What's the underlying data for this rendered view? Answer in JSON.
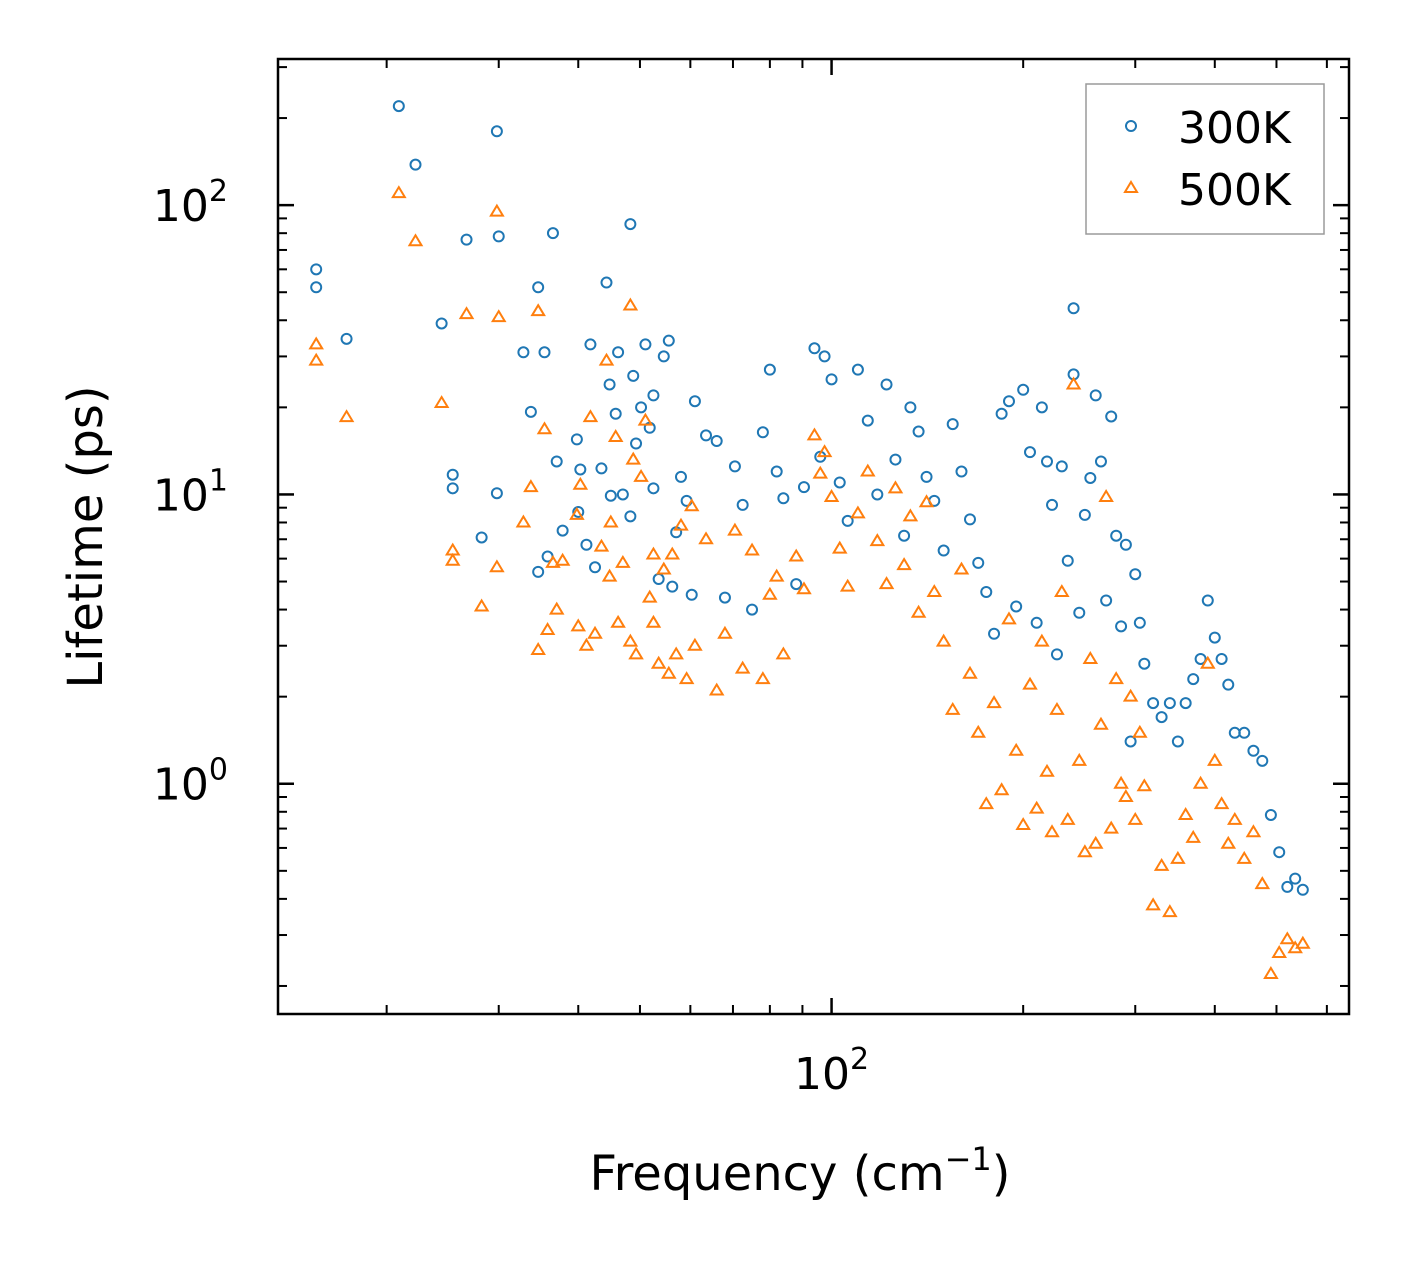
{
  "chart_data": {
    "type": "scatter",
    "title": "",
    "xlabel": "Frequency (cm",
    "xlabel_superscript": "−1",
    "xlabel_suffix": ")",
    "ylabel": "Lifetime (ps)",
    "xscale": "log",
    "yscale": "log",
    "xlim": [
      13.5,
      650
    ],
    "ylim": [
      0.16,
      320
    ],
    "xticks": [
      {
        "value": 100,
        "base": "10",
        "exp": "2"
      }
    ],
    "yticks": [
      {
        "value": 1,
        "base": "10",
        "exp": "0"
      },
      {
        "value": 10,
        "base": "10",
        "exp": "1"
      },
      {
        "value": 100,
        "base": "10",
        "exp": "2"
      }
    ],
    "grid": false,
    "legend_position": "top-right",
    "series": [
      {
        "name": "300K",
        "marker": "circle",
        "color": "#1f77b4",
        "points": [
          [
            15.5,
            60
          ],
          [
            15.5,
            52
          ],
          [
            17.3,
            34.5
          ],
          [
            20.9,
            220
          ],
          [
            22.2,
            138
          ],
          [
            24.4,
            39
          ],
          [
            25.4,
            10.5
          ],
          [
            25.4,
            11.7
          ],
          [
            26.7,
            76
          ],
          [
            28.2,
            7.1
          ],
          [
            29.8,
            180
          ],
          [
            29.8,
            10.1
          ],
          [
            30.0,
            78
          ],
          [
            32.8,
            31
          ],
          [
            33.7,
            19.3
          ],
          [
            34.6,
            52
          ],
          [
            34.6,
            5.4
          ],
          [
            35.4,
            31
          ],
          [
            35.8,
            6.1
          ],
          [
            36.5,
            80
          ],
          [
            37.0,
            13
          ],
          [
            37.8,
            7.5
          ],
          [
            39.8,
            15.5
          ],
          [
            40.0,
            8.7
          ],
          [
            40.3,
            12.2
          ],
          [
            41.2,
            6.7
          ],
          [
            41.8,
            33
          ],
          [
            42.5,
            5.6
          ],
          [
            43.5,
            12.3
          ],
          [
            44.3,
            54
          ],
          [
            44.8,
            24
          ],
          [
            45.0,
            9.9
          ],
          [
            45.8,
            19
          ],
          [
            46.2,
            31
          ],
          [
            47.0,
            10
          ],
          [
            48.3,
            86
          ],
          [
            48.3,
            8.4
          ],
          [
            48.8,
            25.7
          ],
          [
            49.3,
            15
          ],
          [
            50.2,
            20
          ],
          [
            51.0,
            33
          ],
          [
            51.8,
            17
          ],
          [
            52.5,
            10.5
          ],
          [
            52.5,
            22
          ],
          [
            53.5,
            5.1
          ],
          [
            54.5,
            30
          ],
          [
            55.5,
            34
          ],
          [
            56.2,
            4.8
          ],
          [
            57.0,
            7.4
          ],
          [
            58.0,
            11.5
          ],
          [
            59.2,
            9.5
          ],
          [
            60.3,
            4.5
          ],
          [
            61.0,
            21
          ],
          [
            63.5,
            16
          ],
          [
            66.0,
            15.3
          ],
          [
            68.0,
            4.4
          ],
          [
            70.5,
            12.5
          ],
          [
            72.5,
            9.2
          ],
          [
            75.0,
            4.0
          ],
          [
            78.0,
            16.4
          ],
          [
            80.0,
            27
          ],
          [
            82.0,
            12
          ],
          [
            84.0,
            9.7
          ],
          [
            88.0,
            4.9
          ],
          [
            90.5,
            10.6
          ],
          [
            94.0,
            32
          ],
          [
            96.0,
            13.5
          ],
          [
            97.5,
            30
          ],
          [
            100.0,
            25
          ],
          [
            103.0,
            11
          ],
          [
            106.0,
            8.1
          ],
          [
            110.0,
            27
          ],
          [
            114.0,
            18
          ],
          [
            118.0,
            10
          ],
          [
            122.0,
            24
          ],
          [
            126.0,
            13.2
          ],
          [
            130.0,
            7.2
          ],
          [
            133.0,
            20
          ],
          [
            137.0,
            16.5
          ],
          [
            141.0,
            11.5
          ],
          [
            145.0,
            9.5
          ],
          [
            150.0,
            6.4
          ],
          [
            155.0,
            17.5
          ],
          [
            160.0,
            12
          ],
          [
            165.0,
            8.2
          ],
          [
            170.0,
            5.8
          ],
          [
            175.0,
            4.6
          ],
          [
            180.0,
            3.3
          ],
          [
            185.0,
            19
          ],
          [
            190.0,
            21
          ],
          [
            195.0,
            4.1
          ],
          [
            200.0,
            23
          ],
          [
            205.0,
            14
          ],
          [
            210.0,
            3.6
          ],
          [
            214.0,
            20
          ],
          [
            218.0,
            13
          ],
          [
            222.0,
            9.2
          ],
          [
            226.0,
            2.8
          ],
          [
            230.0,
            12.5
          ],
          [
            235.0,
            5.9
          ],
          [
            240.0,
            44
          ],
          [
            240.0,
            26
          ],
          [
            245.0,
            3.9
          ],
          [
            250.0,
            8.5
          ],
          [
            255.0,
            11.4
          ],
          [
            260.0,
            22
          ],
          [
            265.0,
            13
          ],
          [
            270.0,
            4.3
          ],
          [
            275.0,
            18.6
          ],
          [
            280.0,
            7.2
          ],
          [
            285.0,
            3.5
          ],
          [
            290.0,
            6.7
          ],
          [
            295.0,
            1.4
          ],
          [
            300.0,
            5.3
          ],
          [
            305.0,
            3.6
          ],
          [
            310.0,
            2.6
          ],
          [
            320.0,
            1.9
          ],
          [
            330.0,
            1.7
          ],
          [
            340.0,
            1.9
          ],
          [
            350.0,
            1.4
          ],
          [
            360.0,
            1.9
          ],
          [
            370.0,
            2.3
          ],
          [
            380.0,
            2.7
          ],
          [
            390.0,
            4.3
          ],
          [
            400.0,
            3.2
          ],
          [
            410.0,
            2.7
          ],
          [
            420.0,
            2.2
          ],
          [
            430.0,
            1.5
          ],
          [
            445.0,
            1.5
          ],
          [
            460.0,
            1.3
          ],
          [
            475.0,
            1.2
          ],
          [
            490.0,
            0.78
          ],
          [
            505.0,
            0.58
          ],
          [
            520.0,
            0.44
          ],
          [
            535.0,
            0.47
          ],
          [
            550.0,
            0.43
          ]
        ]
      },
      {
        "name": "500K",
        "marker": "triangle",
        "color": "#ff7f0e",
        "points": [
          [
            15.5,
            33
          ],
          [
            15.5,
            29
          ],
          [
            17.3,
            18.5
          ],
          [
            20.9,
            110
          ],
          [
            22.2,
            75
          ],
          [
            24.4,
            20.7
          ],
          [
            25.4,
            5.9
          ],
          [
            25.4,
            6.4
          ],
          [
            26.7,
            42
          ],
          [
            28.2,
            4.1
          ],
          [
            29.8,
            95
          ],
          [
            29.8,
            5.6
          ],
          [
            30.0,
            41
          ],
          [
            32.8,
            8.0
          ],
          [
            33.7,
            10.6
          ],
          [
            34.6,
            43
          ],
          [
            34.6,
            2.9
          ],
          [
            35.4,
            16.8
          ],
          [
            35.8,
            3.4
          ],
          [
            36.5,
            5.8
          ],
          [
            37.0,
            4.0
          ],
          [
            37.8,
            5.9
          ],
          [
            39.8,
            8.5
          ],
          [
            40.0,
            3.5
          ],
          [
            40.3,
            10.8
          ],
          [
            41.2,
            3.0
          ],
          [
            41.8,
            18.5
          ],
          [
            42.5,
            3.3
          ],
          [
            43.5,
            6.6
          ],
          [
            44.3,
            29
          ],
          [
            44.8,
            5.2
          ],
          [
            45.0,
            8.0
          ],
          [
            45.8,
            15.8
          ],
          [
            46.2,
            3.6
          ],
          [
            47.0,
            5.8
          ],
          [
            48.3,
            45
          ],
          [
            48.3,
            3.1
          ],
          [
            48.8,
            13.2
          ],
          [
            49.3,
            2.8
          ],
          [
            50.2,
            11.5
          ],
          [
            51.0,
            18
          ],
          [
            51.8,
            4.4
          ],
          [
            52.5,
            6.2
          ],
          [
            52.5,
            3.6
          ],
          [
            53.5,
            2.6
          ],
          [
            54.5,
            5.5
          ],
          [
            55.5,
            2.4
          ],
          [
            56.2,
            6.2
          ],
          [
            57.0,
            2.8
          ],
          [
            58.0,
            7.8
          ],
          [
            59.2,
            2.3
          ],
          [
            60.3,
            9.1
          ],
          [
            61.0,
            3.0
          ],
          [
            63.5,
            7.0
          ],
          [
            66.0,
            2.1
          ],
          [
            68.0,
            3.3
          ],
          [
            70.5,
            7.5
          ],
          [
            72.5,
            2.5
          ],
          [
            75.0,
            6.4
          ],
          [
            78.0,
            2.3
          ],
          [
            80.0,
            4.5
          ],
          [
            82.0,
            5.2
          ],
          [
            84.0,
            2.8
          ],
          [
            88.0,
            6.1
          ],
          [
            90.5,
            4.7
          ],
          [
            94.0,
            16
          ],
          [
            96.0,
            11.8
          ],
          [
            97.5,
            14
          ],
          [
            100.0,
            9.8
          ],
          [
            103.0,
            6.5
          ],
          [
            106.0,
            4.8
          ],
          [
            110.0,
            8.6
          ],
          [
            114.0,
            12
          ],
          [
            118.0,
            6.9
          ],
          [
            122.0,
            4.9
          ],
          [
            126.0,
            10.5
          ],
          [
            130.0,
            5.7
          ],
          [
            133.0,
            8.4
          ],
          [
            137.0,
            3.9
          ],
          [
            141.0,
            9.4
          ],
          [
            145.0,
            4.6
          ],
          [
            150.0,
            3.1
          ],
          [
            155.0,
            1.8
          ],
          [
            160.0,
            5.5
          ],
          [
            165.0,
            2.4
          ],
          [
            170.0,
            1.5
          ],
          [
            175.0,
            0.85
          ],
          [
            180.0,
            1.9
          ],
          [
            185.0,
            0.95
          ],
          [
            190.0,
            3.7
          ],
          [
            195.0,
            1.3
          ],
          [
            200.0,
            0.72
          ],
          [
            205.0,
            2.2
          ],
          [
            210.0,
            0.82
          ],
          [
            214.0,
            3.1
          ],
          [
            218.0,
            1.1
          ],
          [
            222.0,
            0.68
          ],
          [
            226.0,
            1.8
          ],
          [
            230.0,
            4.6
          ],
          [
            235.0,
            0.75
          ],
          [
            240.0,
            24
          ],
          [
            245.0,
            1.2
          ],
          [
            250.0,
            0.58
          ],
          [
            255.0,
            2.7
          ],
          [
            260.0,
            0.62
          ],
          [
            265.0,
            1.6
          ],
          [
            270.0,
            9.8
          ],
          [
            275.0,
            0.7
          ],
          [
            280.0,
            2.3
          ],
          [
            285.0,
            1.0
          ],
          [
            290.0,
            0.9
          ],
          [
            295.0,
            2.0
          ],
          [
            300.0,
            0.75
          ],
          [
            305.0,
            1.5
          ],
          [
            310.0,
            0.98
          ],
          [
            320.0,
            0.38
          ],
          [
            330.0,
            0.52
          ],
          [
            340.0,
            0.36
          ],
          [
            350.0,
            0.55
          ],
          [
            360.0,
            0.78
          ],
          [
            370.0,
            0.65
          ],
          [
            380.0,
            1.0
          ],
          [
            390.0,
            2.6
          ],
          [
            400.0,
            1.2
          ],
          [
            410.0,
            0.85
          ],
          [
            420.0,
            0.62
          ],
          [
            430.0,
            0.75
          ],
          [
            445.0,
            0.55
          ],
          [
            460.0,
            0.68
          ],
          [
            475.0,
            0.45
          ],
          [
            490.0,
            0.22
          ],
          [
            505.0,
            0.26
          ],
          [
            520.0,
            0.29
          ],
          [
            535.0,
            0.27
          ],
          [
            550.0,
            0.28
          ]
        ]
      }
    ]
  }
}
